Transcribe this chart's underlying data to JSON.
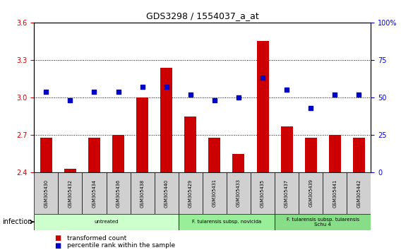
{
  "title": "GDS3298 / 1554037_a_at",
  "samples": [
    "GSM305430",
    "GSM305432",
    "GSM305434",
    "GSM305436",
    "GSM305438",
    "GSM305440",
    "GSM305429",
    "GSM305431",
    "GSM305433",
    "GSM305435",
    "GSM305437",
    "GSM305439",
    "GSM305441",
    "GSM305442"
  ],
  "transformed_count": [
    2.68,
    2.43,
    2.68,
    2.7,
    3.0,
    3.24,
    2.85,
    2.68,
    2.55,
    3.45,
    2.77,
    2.68,
    2.7,
    2.68
  ],
  "percentile_rank": [
    54,
    48,
    54,
    54,
    57,
    57,
    52,
    48,
    50,
    63,
    55,
    43,
    52,
    52
  ],
  "ylim_left": [
    2.4,
    3.6
  ],
  "ylim_right": [
    0,
    100
  ],
  "yticks_left": [
    2.4,
    2.7,
    3.0,
    3.3,
    3.6
  ],
  "yticks_right": [
    0,
    25,
    50,
    75,
    100
  ],
  "ytick_labels_right": [
    "0",
    "25",
    "50",
    "75",
    "100%"
  ],
  "bar_color": "#cc0000",
  "dot_color": "#0000cc",
  "background_color": "#ffffff",
  "groups": [
    {
      "label": "untreated",
      "start": 0,
      "end": 5,
      "color": "#ccffcc"
    },
    {
      "label": "F. tularensis subsp. novicida",
      "start": 6,
      "end": 9,
      "color": "#99ee99"
    },
    {
      "label": "F. tularensis subsp. tularensis\nSchu 4",
      "start": 10,
      "end": 13,
      "color": "#88dd88"
    }
  ],
  "infection_label": "infection",
  "legend_items": [
    {
      "label": "transformed count",
      "color": "#cc0000"
    },
    {
      "label": "percentile rank within the sample",
      "color": "#0000cc"
    }
  ],
  "bar_width": 0.5,
  "tick_label_area_color": "#d0d0d0"
}
